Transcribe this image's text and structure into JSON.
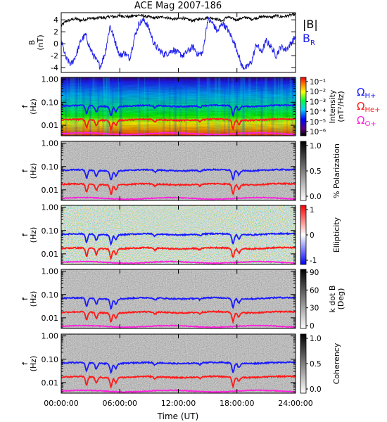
{
  "chart_data": {
    "type": "heatmap",
    "title": "ACE Mag 2007-186",
    "xlabel": "Time (UT)",
    "x_ticks": [
      "00:00:00",
      "06:00:00",
      "12:00:00",
      "18:00:00",
      "24:00:00"
    ],
    "x_range_hours": [
      0,
      24
    ],
    "panels": [
      {
        "id": "field",
        "type": "line",
        "ylabel": "B",
        "yunit": "(nT)",
        "ylim": [
          -4.8,
          5.2
        ],
        "y_ticks": [
          "4",
          "2",
          "0",
          "-2",
          "-4"
        ],
        "y_tick_values": [
          4,
          2,
          0,
          -2,
          -4
        ],
        "legend": [
          {
            "label": "|B|",
            "color": "#000000"
          },
          {
            "label": "B",
            "sub": "R",
            "color": "#2222ee"
          }
        ],
        "series": [
          {
            "name": "|B|",
            "color": "#000000",
            "t": [
              0,
              0.5,
              1,
              1.5,
              2,
              2.5,
              3,
              3.5,
              4,
              4.5,
              5,
              5.5,
              6,
              6.5,
              7,
              7.5,
              8,
              8.5,
              9,
              9.5,
              10,
              10.5,
              11,
              11.5,
              12,
              12.5,
              13,
              13.5,
              14,
              14.5,
              15,
              15.5,
              16,
              16.5,
              17,
              17.5,
              18,
              18.5,
              19,
              19.5,
              20,
              20.5,
              21,
              21.5,
              22,
              22.5,
              23,
              23.5,
              24
            ],
            "values": [
              3.0,
              3.8,
              4.0,
              4.2,
              3.9,
              4.1,
              4.3,
              4.2,
              4.4,
              4.3,
              4.6,
              4.5,
              4.7,
              4.6,
              4.5,
              4.7,
              4.8,
              4.6,
              4.5,
              4.3,
              4.4,
              4.5,
              4.3,
              4.1,
              4.2,
              4.3,
              4.0,
              3.9,
              4.1,
              4.2,
              4.4,
              4.3,
              4.1,
              3.8,
              4.5,
              4.2,
              4.0,
              4.3,
              4.4,
              4.1,
              4.3,
              4.5,
              4.6,
              4.4,
              4.7,
              4.5,
              4.6,
              4.8,
              4.9
            ]
          },
          {
            "name": "B_R",
            "color": "#2222ee",
            "t": [
              0,
              0.5,
              1,
              1.5,
              2,
              2.5,
              3,
              3.5,
              4,
              4.5,
              5,
              5.5,
              6,
              6.5,
              7,
              7.5,
              8,
              8.5,
              9,
              9.5,
              10,
              10.5,
              11,
              11.5,
              12,
              12.5,
              13,
              13.5,
              14,
              14.5,
              15,
              15.5,
              16,
              16.5,
              17,
              17.5,
              18,
              18.5,
              19,
              19.5,
              20,
              20.5,
              21,
              21.5,
              22,
              22.5,
              23,
              23.5,
              24
            ],
            "values": [
              0.5,
              -2.5,
              -3.5,
              -2.0,
              0.5,
              1.5,
              -1.0,
              -2.5,
              -3.8,
              -1.5,
              3.0,
              0.5,
              -2.0,
              -1.5,
              -2.5,
              1.0,
              3.5,
              4.0,
              2.5,
              0.0,
              -1.0,
              -1.8,
              -1.5,
              -1.0,
              -1.6,
              -2.0,
              -1.2,
              -0.5,
              -1.8,
              -1.5,
              4.0,
              3.5,
              2.0,
              3.5,
              2.5,
              1.0,
              -1.0,
              -3.8,
              -4.0,
              -3.0,
              0.0,
              -1.5,
              0.5,
              -0.5,
              -2.0,
              -0.5,
              -1.0,
              0.0,
              1.2
            ]
          }
        ]
      },
      {
        "id": "intensity",
        "ylabel": "f",
        "yunit": "(Hz)",
        "colorbar_ticks": [
          "10⁻¹",
          "10⁻²",
          "10⁻³",
          "10⁻⁴",
          "10⁻⁵",
          "10⁻⁶"
        ],
        "colorbar_label": "Intensity",
        "colorbar_unit": "(nT²/Hz)",
        "colormap": "rainbow"
      },
      {
        "id": "polarization",
        "ylabel": "f",
        "yunit": "(Hz)",
        "colorbar_ticks": [
          "1.0",
          "0.5",
          "0.0"
        ],
        "colorbar_label": "% Polarization",
        "colormap": "gray"
      },
      {
        "id": "ellipticity",
        "ylabel": "f",
        "yunit": "(Hz)",
        "colorbar_ticks": [
          "1",
          "0",
          "-1"
        ],
        "colorbar_label": "Ellipticity",
        "colormap": "bwr"
      },
      {
        "id": "kdotb",
        "ylabel": "f",
        "yunit": "(Hz)",
        "colorbar_ticks": [
          "90",
          "60",
          "30",
          "0"
        ],
        "colorbar_label": "k dot B",
        "colorbar_unit": "(Deg)",
        "colormap": "gray"
      },
      {
        "id": "coherency",
        "ylabel": "f",
        "yunit": "(Hz)",
        "colorbar_ticks": [
          "1.0",
          "0.5",
          "0.0"
        ],
        "colorbar_label": "Coherency",
        "colormap": "gray"
      }
    ],
    "freq_axis": {
      "scale": "log",
      "ylim": [
        0.0035,
        1.2
      ],
      "ticks": [
        "1.00",
        "0.10",
        "0.01"
      ],
      "tick_values": [
        1.0,
        0.1,
        0.01
      ]
    },
    "gyro_lines": [
      {
        "name": "Ω",
        "sub": "H+",
        "color": "#1a1aff",
        "level_hz": 0.068
      },
      {
        "name": "Ω",
        "sub": "He+",
        "color": "#ff1a1a",
        "level_hz": 0.017
      },
      {
        "name": "Ω",
        "sub": "O+",
        "color": "#ff22dd",
        "level_hz": 0.0043
      }
    ]
  }
}
